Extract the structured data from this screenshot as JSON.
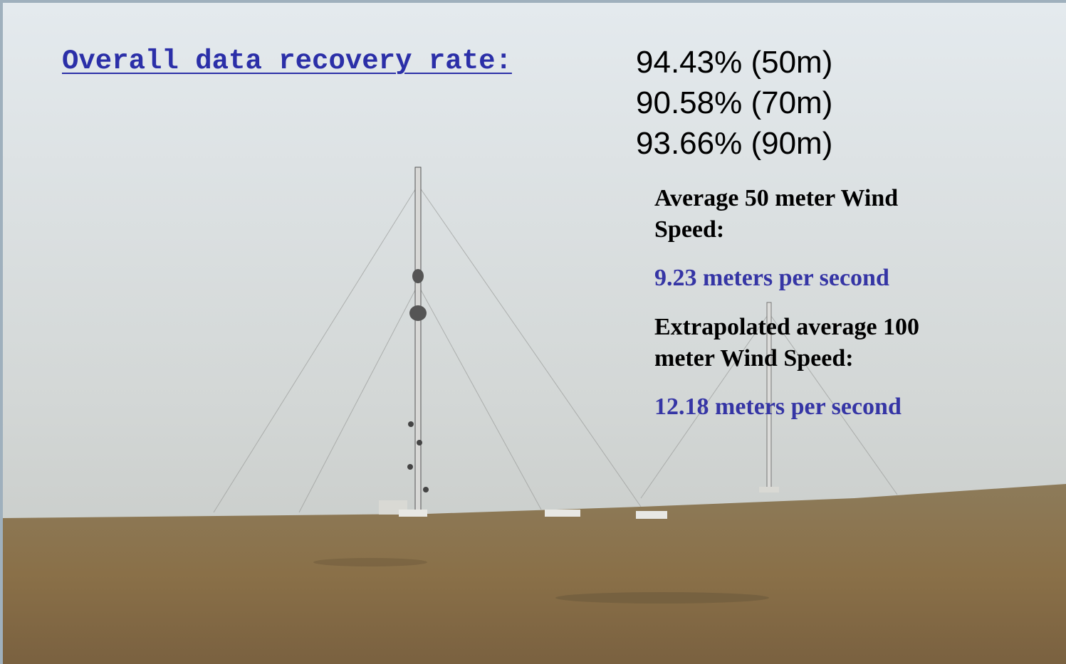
{
  "slide": {
    "heading": "Overall data recovery rate:",
    "rates": [
      "94.43% (50m)",
      "90.58% (70m)",
      "93.66% (90m)"
    ],
    "wind": [
      {
        "label": "Average 50 meter Wind Speed:",
        "value": "9.23 meters per second"
      },
      {
        "label": "Extrapolated average 100 meter Wind Speed:",
        "value": "12.18 meters per second"
      }
    ]
  }
}
